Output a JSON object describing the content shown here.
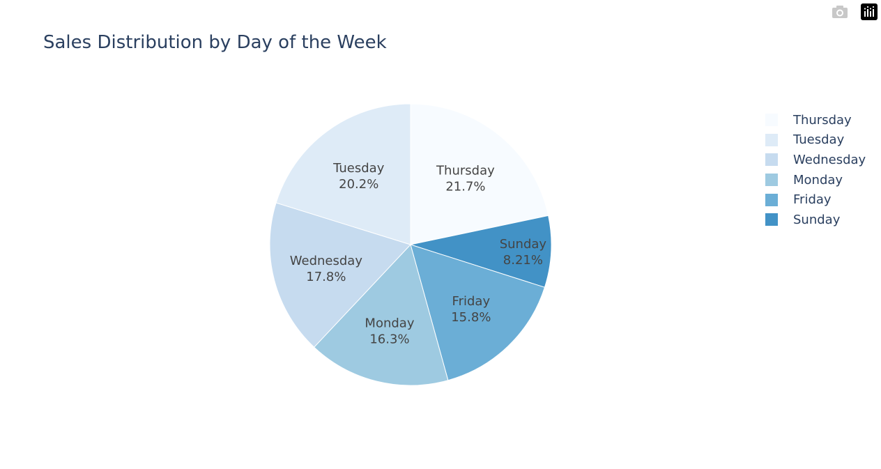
{
  "chart_data": {
    "type": "pie",
    "title": "Sales Distribution by Day of the Week",
    "categories": [
      "Thursday",
      "Sunday",
      "Friday",
      "Monday",
      "Wednesday",
      "Tuesday"
    ],
    "values": [
      21.7,
      8.21,
      15.8,
      16.3,
      17.8,
      20.2
    ],
    "value_labels": [
      "21.7%",
      "8.21%",
      "15.8%",
      "16.3%",
      "17.8%",
      "20.2%"
    ],
    "colors": [
      "#f7fbff",
      "#4292c6",
      "#6baed6",
      "#9ecae1",
      "#c6dbef",
      "#deebf7"
    ],
    "direction": "clockwise",
    "legend": {
      "placement": "right",
      "entries": [
        "Thursday",
        "Tuesday",
        "Wednesday",
        "Monday",
        "Friday",
        "Sunday"
      ],
      "colors": [
        "#f7fbff",
        "#deebf7",
        "#c6dbef",
        "#9ecae1",
        "#6baed6",
        "#4292c6"
      ]
    }
  },
  "modebar": {
    "icons": [
      "camera-icon",
      "plotly-logo-icon"
    ]
  }
}
